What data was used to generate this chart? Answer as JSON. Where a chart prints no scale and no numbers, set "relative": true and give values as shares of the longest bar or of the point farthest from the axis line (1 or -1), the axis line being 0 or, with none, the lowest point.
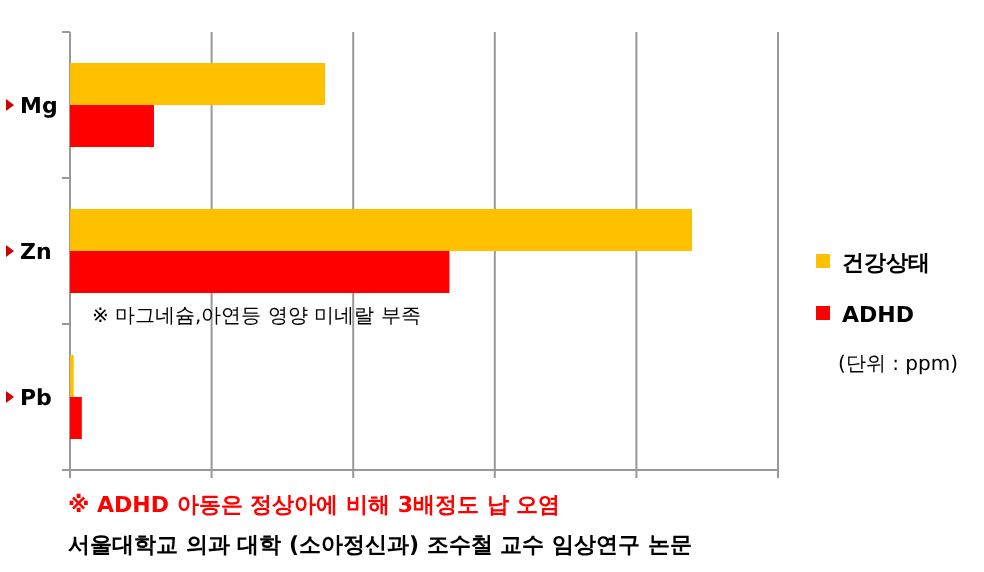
{
  "chart_data": {
    "type": "bar",
    "orientation": "horizontal",
    "relative": true,
    "categories": [
      "Mg",
      "Zn",
      "Pb"
    ],
    "series": [
      {
        "name": "건강상태",
        "color": "#ffc000",
        "values": [
          0.41,
          1,
          0.006
        ]
      },
      {
        "name": "ADHD",
        "color": "#ff0000",
        "values": [
          0.135,
          0.61,
          0.019
        ]
      }
    ],
    "grid": "x",
    "legend": "right",
    "annotations": [
      "(단위 : ppm)",
      "※ 마그네슘,아연등 영양 미네랄 부족",
      "※ ADHD 아동은 정상아에 비해 3배정도 납 오염",
      "서울대학교 의과 대학 (소아정신과) 조수철 교수 임상연구 논문"
    ]
  }
}
